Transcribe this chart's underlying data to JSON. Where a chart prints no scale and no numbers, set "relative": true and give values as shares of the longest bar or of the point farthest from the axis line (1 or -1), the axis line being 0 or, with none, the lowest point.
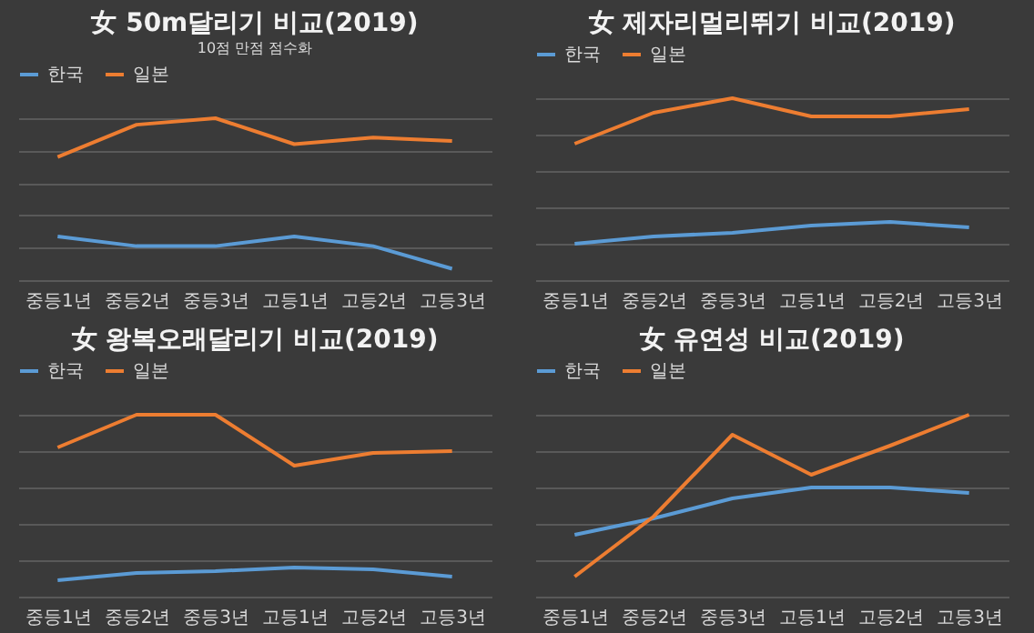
{
  "chart_data": [
    {
      "type": "line",
      "title": "女 50m달리기 비교(2019)",
      "subtitle": "10점 만점 점수화",
      "relative": true,
      "grid": "y",
      "legend": "top",
      "categories": [
        "중등1년",
        "중등2년",
        "중등3년",
        "고등1년",
        "고등2년",
        "고등3년"
      ],
      "series": [
        {
          "name": "한국",
          "color": "#5b9bd5",
          "values": [
            0.27,
            0.21,
            0.21,
            0.27,
            0.21,
            0.07
          ]
        },
        {
          "name": "일본",
          "color": "#ed7d31",
          "values": [
            0.76,
            0.96,
            1,
            0.84,
            0.88,
            0.86
          ]
        }
      ]
    },
    {
      "type": "line",
      "title": "女 제자리멀리뛰기 비교(2019)",
      "relative": true,
      "grid": "y",
      "legend": "top",
      "categories": [
        "중등1년",
        "중등2년",
        "중등3년",
        "고등1년",
        "고등2년",
        "고등3년"
      ],
      "series": [
        {
          "name": "한국",
          "color": "#5b9bd5",
          "values": [
            0.2,
            0.24,
            0.26,
            0.3,
            0.32,
            0.29
          ]
        },
        {
          "name": "일본",
          "color": "#ed7d31",
          "values": [
            0.75,
            0.92,
            1,
            0.9,
            0.9,
            0.94
          ]
        }
      ]
    },
    {
      "type": "line",
      "title": "女 왕복오래달리기 비교(2019)",
      "relative": true,
      "grid": "y",
      "legend": "top",
      "categories": [
        "중등1년",
        "중등2년",
        "중등3년",
        "고등1년",
        "고등2년",
        "고등3년"
      ],
      "series": [
        {
          "name": "한국",
          "color": "#5b9bd5",
          "values": [
            0.09,
            0.13,
            0.14,
            0.16,
            0.15,
            0.11
          ]
        },
        {
          "name": "일본",
          "color": "#ed7d31",
          "values": [
            0.82,
            1,
            1,
            0.72,
            0.79,
            0.8
          ]
        }
      ]
    },
    {
      "type": "line",
      "title": "女 유연성 비교(2019)",
      "relative": true,
      "grid": "y",
      "legend": "top",
      "categories": [
        "중등1년",
        "중등2년",
        "중등3년",
        "고등1년",
        "고등2년",
        "고등3년"
      ],
      "series": [
        {
          "name": "한국",
          "color": "#5b9bd5",
          "values": [
            0.34,
            0.43,
            0.54,
            0.6,
            0.6,
            0.57
          ]
        },
        {
          "name": "일본",
          "color": "#ed7d31",
          "values": [
            0.11,
            0.44,
            0.89,
            0.67,
            0.83,
            1
          ]
        }
      ]
    }
  ]
}
